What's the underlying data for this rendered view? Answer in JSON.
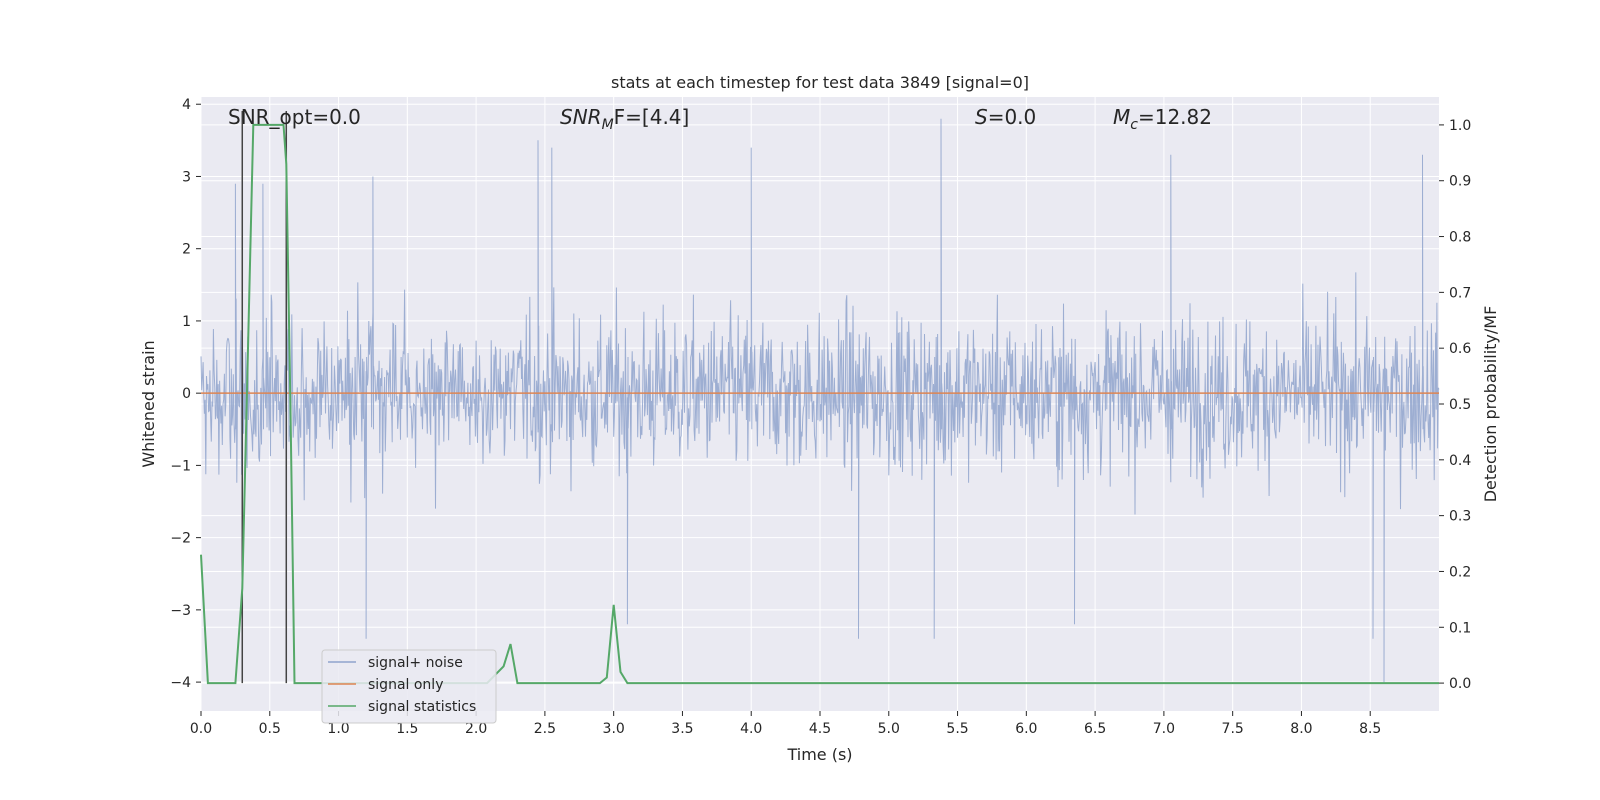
{
  "chart_data": {
    "type": "line",
    "title": "stats at each timestep for test data 3849 [signal=0]",
    "xlabel": "Time (s)",
    "ylabel_left": "Whitened strain",
    "ylabel_right": "Detection probability/MF",
    "xlim": [
      0.0,
      9.0
    ],
    "ylim_left": [
      -4.4,
      4.1
    ],
    "ylim_right": [
      -0.05,
      1.05
    ],
    "x_ticks": [
      "0.0",
      "0.5",
      "1.0",
      "1.5",
      "2.0",
      "2.5",
      "3.0",
      "3.5",
      "4.0",
      "4.5",
      "5.0",
      "5.5",
      "6.0",
      "6.5",
      "7.0",
      "7.5",
      "8.0",
      "8.5"
    ],
    "y_ticks_left": [
      "−4",
      "−3",
      "−2",
      "−1",
      "0",
      "1",
      "2",
      "3",
      "4"
    ],
    "y_ticks_right": [
      "0.0",
      "0.1",
      "0.2",
      "0.3",
      "0.4",
      "0.5",
      "0.6",
      "0.7",
      "0.8",
      "0.9",
      "1.0"
    ],
    "grid": true,
    "legend_position": "lower-left",
    "annotations": {
      "snr_opt": "SNR_opt=0.0",
      "snr_mf_main": "SNR",
      "snr_mf_sub": "M",
      "snr_mf_tail": "F=[4.4]",
      "s_main": "S",
      "s_tail": "=0.0",
      "mc_main": "M",
      "mc_sub": "c",
      "mc_tail": "=12.82"
    },
    "series": [
      {
        "name": "signal+ noise",
        "color": "#8fa3cc",
        "axis": "left",
        "description": "whitened noise, approx. band ±1.5 with spikes to ±3.5",
        "spike_highs": [
          [
            0.25,
            2.9
          ],
          [
            0.45,
            2.9
          ],
          [
            1.25,
            3.0
          ],
          [
            2.45,
            3.5
          ],
          [
            2.55,
            3.4
          ],
          [
            4.0,
            3.4
          ],
          [
            5.38,
            3.8
          ],
          [
            7.05,
            3.3
          ],
          [
            8.88,
            3.3
          ]
        ],
        "spike_lows": [
          [
            1.2,
            -3.4
          ],
          [
            3.1,
            -3.2
          ],
          [
            4.78,
            -3.4
          ],
          [
            5.33,
            -3.4
          ],
          [
            6.35,
            -3.2
          ],
          [
            8.52,
            -3.4
          ],
          [
            8.6,
            -4.0
          ]
        ]
      },
      {
        "name": "signal only",
        "color": "#dd8452",
        "axis": "left",
        "x": [
          0.0,
          9.0
        ],
        "y": [
          0.0,
          0.0
        ]
      },
      {
        "name": "signal statistics",
        "color": "#55a868",
        "axis": "right",
        "x": [
          0.0,
          0.05,
          0.1,
          0.25,
          0.3,
          0.38,
          0.45,
          0.6,
          0.62,
          0.65,
          0.68,
          0.75,
          2.08,
          2.2,
          2.25,
          2.3,
          2.35,
          2.9,
          2.95,
          3.0,
          3.05,
          3.1,
          3.15,
          9.0
        ],
        "y": [
          0.23,
          0.0,
          0.0,
          0.0,
          0.17,
          1.0,
          1.0,
          1.0,
          0.93,
          0.5,
          0.0,
          0.0,
          0.0,
          0.03,
          0.07,
          0.0,
          0.0,
          0.0,
          0.01,
          0.14,
          0.02,
          0.0,
          0.0,
          0.0
        ]
      }
    ],
    "vertical_markers": [
      0.3,
      0.62
    ]
  },
  "colors": {
    "background": "#eaeaf2",
    "grid": "#ffffff",
    "marker": "#444444"
  }
}
